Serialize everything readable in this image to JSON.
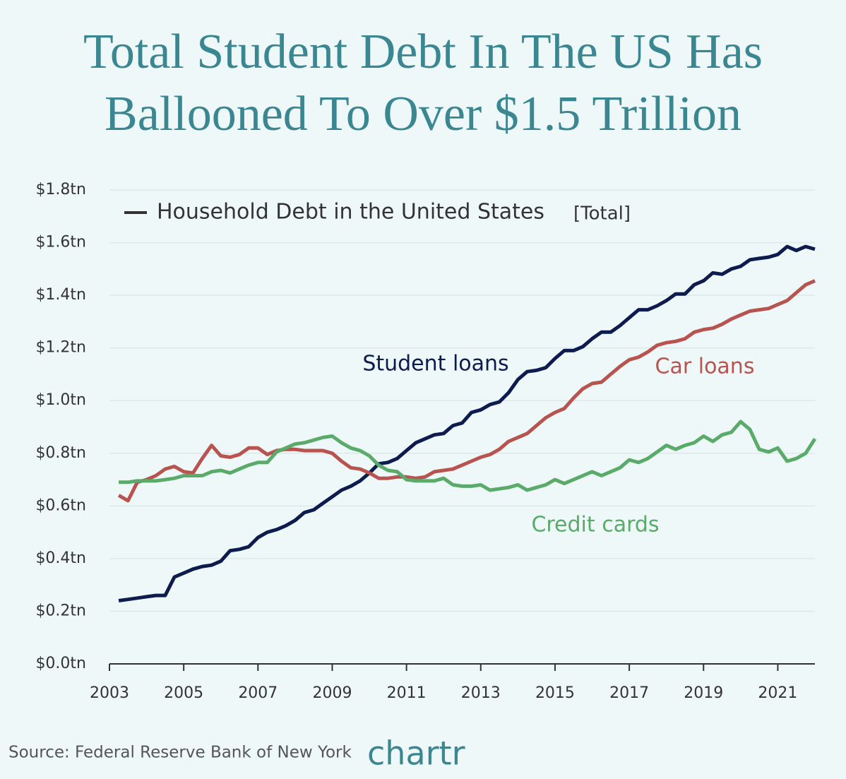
{
  "chart_data": {
    "type": "line",
    "title_lines": [
      "Total Student Debt In The US Has",
      "Ballooned To Over $1.5 Trillion"
    ],
    "legend_title": "Household Debt in the United States",
    "legend_subtitle": "[Total]",
    "source": "Source: Federal Reserve Bank of New York",
    "logo": "chartr",
    "x": [
      2003.25,
      2003.5,
      2003.75,
      2004,
      2004.25,
      2004.5,
      2004.75,
      2005,
      2005.25,
      2005.5,
      2005.75,
      2006,
      2006.25,
      2006.5,
      2006.75,
      2007,
      2007.25,
      2007.5,
      2007.75,
      2008,
      2008.25,
      2008.5,
      2008.75,
      2009,
      2009.25,
      2009.5,
      2009.75,
      2010,
      2010.25,
      2010.5,
      2010.75,
      2011,
      2011.25,
      2011.5,
      2011.75,
      2012,
      2012.25,
      2012.5,
      2012.75,
      2013,
      2013.25,
      2013.5,
      2013.75,
      2014,
      2014.25,
      2014.5,
      2014.75,
      2015,
      2015.25,
      2015.5,
      2015.75,
      2016,
      2016.25,
      2016.5,
      2016.75,
      2017,
      2017.25,
      2017.5,
      2017.75,
      2018,
      2018.25,
      2018.5,
      2018.75,
      2019,
      2019.25,
      2019.5,
      2019.75,
      2020,
      2020.25,
      2020.5,
      2020.75,
      2021,
      2021.25,
      2021.5,
      2021.75,
      2022
    ],
    "series": [
      {
        "name": "Student loans",
        "color": "#0d1b4e",
        "values": [
          0.24,
          0.245,
          0.25,
          0.255,
          0.26,
          0.26,
          0.33,
          0.345,
          0.36,
          0.37,
          0.375,
          0.39,
          0.43,
          0.435,
          0.445,
          0.48,
          0.5,
          0.51,
          0.525,
          0.545,
          0.575,
          0.585,
          0.61,
          0.635,
          0.66,
          0.675,
          0.695,
          0.725,
          0.76,
          0.765,
          0.78,
          0.81,
          0.84,
          0.855,
          0.87,
          0.875,
          0.905,
          0.915,
          0.955,
          0.965,
          0.985,
          0.995,
          1.03,
          1.08,
          1.11,
          1.115,
          1.125,
          1.16,
          1.19,
          1.19,
          1.205,
          1.235,
          1.26,
          1.26,
          1.285,
          1.315,
          1.345,
          1.345,
          1.36,
          1.38,
          1.405,
          1.405,
          1.44,
          1.455,
          1.485,
          1.48,
          1.5,
          1.51,
          1.535,
          1.54,
          1.545,
          1.555,
          1.585,
          1.57,
          1.585,
          1.575
        ]
      },
      {
        "name": "Car loans",
        "color": "#b85450",
        "values": [
          0.64,
          0.62,
          0.69,
          0.7,
          0.715,
          0.74,
          0.75,
          0.73,
          0.725,
          0.78,
          0.83,
          0.79,
          0.785,
          0.795,
          0.82,
          0.82,
          0.795,
          0.81,
          0.815,
          0.815,
          0.81,
          0.81,
          0.81,
          0.8,
          0.77,
          0.745,
          0.74,
          0.725,
          0.705,
          0.705,
          0.71,
          0.71,
          0.705,
          0.71,
          0.73,
          0.735,
          0.74,
          0.755,
          0.77,
          0.785,
          0.795,
          0.815,
          0.845,
          0.86,
          0.875,
          0.905,
          0.935,
          0.955,
          0.97,
          1.01,
          1.045,
          1.065,
          1.07,
          1.1,
          1.13,
          1.155,
          1.165,
          1.185,
          1.21,
          1.22,
          1.225,
          1.235,
          1.26,
          1.27,
          1.275,
          1.29,
          1.31,
          1.325,
          1.34,
          1.345,
          1.35,
          1.365,
          1.38,
          1.41,
          1.44,
          1.455
        ]
      },
      {
        "name": "Credit cards",
        "color": "#5aaa6a",
        "values": [
          0.69,
          0.69,
          0.695,
          0.695,
          0.695,
          0.7,
          0.705,
          0.715,
          0.715,
          0.715,
          0.73,
          0.735,
          0.725,
          0.74,
          0.755,
          0.765,
          0.765,
          0.805,
          0.82,
          0.835,
          0.84,
          0.85,
          0.86,
          0.865,
          0.84,
          0.82,
          0.81,
          0.79,
          0.755,
          0.735,
          0.73,
          0.7,
          0.695,
          0.695,
          0.695,
          0.705,
          0.68,
          0.675,
          0.675,
          0.68,
          0.66,
          0.665,
          0.67,
          0.68,
          0.66,
          0.67,
          0.68,
          0.7,
          0.685,
          0.7,
          0.715,
          0.73,
          0.715,
          0.73,
          0.745,
          0.775,
          0.765,
          0.78,
          0.805,
          0.83,
          0.815,
          0.83,
          0.84,
          0.865,
          0.845,
          0.87,
          0.88,
          0.92,
          0.89,
          0.815,
          0.805,
          0.82,
          0.77,
          0.78,
          0.8,
          0.855
        ]
      }
    ],
    "xlim": [
      2003,
      2022
    ],
    "xticks": [
      2003,
      2005,
      2007,
      2009,
      2011,
      2013,
      2015,
      2017,
      2019,
      2021
    ],
    "ylim": [
      0,
      1.8
    ],
    "yticks": [
      {
        "value": 0,
        "label": "$0.0tn"
      },
      {
        "value": 0.2,
        "label": "$0.2tn"
      },
      {
        "value": 0.4,
        "label": "$0.4tn"
      },
      {
        "value": 0.6,
        "label": "$0.6tn"
      },
      {
        "value": 0.8,
        "label": "$0.8tn"
      },
      {
        "value": 1.0,
        "label": "$1.0tn"
      },
      {
        "value": 1.2,
        "label": "$1.2tn"
      },
      {
        "value": 1.4,
        "label": "$1.4tn"
      },
      {
        "value": 1.6,
        "label": "$1.6tn"
      },
      {
        "value": 1.8,
        "label": "$1.8tn"
      }
    ],
    "grid": true
  }
}
